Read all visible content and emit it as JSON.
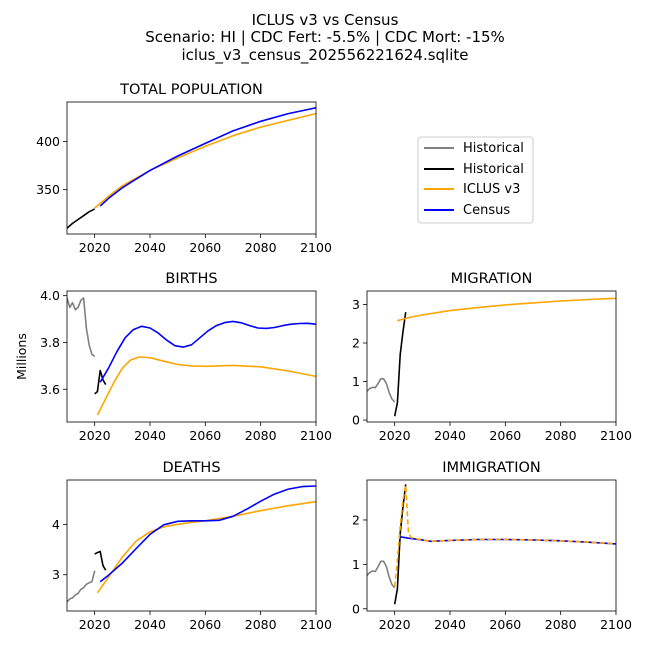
{
  "figure": {
    "title_lines": [
      "ICLUS v3 vs Census",
      "Scenario: HI | CDC Fert: -5.5% | CDC Mort: -15%",
      "iclus_v3_census_202556221624.sqlite"
    ]
  },
  "colors": {
    "historical_gray": "#808080",
    "historical_black": "#000000",
    "iclus": "#ffa500",
    "census": "#0000ff"
  },
  "legend": {
    "placement": "right of TOTAL POPULATION",
    "entries": [
      {
        "label": "Historical",
        "color": "#808080"
      },
      {
        "label": "Historical",
        "color": "#000000"
      },
      {
        "label": "ICLUS v3",
        "color": "#ffa500"
      },
      {
        "label": "Census",
        "color": "#0000ff"
      }
    ]
  },
  "chart_data": [
    {
      "id": "total",
      "type": "line",
      "title": "TOTAL POPULATION",
      "xlabel": "",
      "ylabel": "",
      "xlim": [
        2010,
        2100
      ],
      "ylim": [
        304,
        441
      ],
      "xticks": [
        2020,
        2040,
        2060,
        2080,
        2100
      ],
      "yticks": [
        350,
        400
      ],
      "series": [
        {
          "name": "Historical",
          "color": "#000000",
          "dashed": false,
          "x": [
            2010,
            2012,
            2014,
            2016,
            2018,
            2020
          ],
          "y": [
            310,
            315,
            319,
            323,
            327,
            330
          ]
        },
        {
          "name": "ICLUS v3",
          "color": "#ffa500",
          "dashed": false,
          "x": [
            2020,
            2025,
            2030,
            2040,
            2050,
            2060,
            2070,
            2080,
            2090,
            2100
          ],
          "y": [
            331,
            343,
            354,
            370,
            383,
            395,
            406,
            415,
            422,
            429
          ]
        },
        {
          "name": "Census",
          "color": "#0000ff",
          "dashed": false,
          "x": [
            2022,
            2025,
            2030,
            2040,
            2050,
            2060,
            2070,
            2080,
            2090,
            2100
          ],
          "y": [
            333,
            341,
            352,
            370,
            385,
            398,
            411,
            421,
            429,
            435
          ]
        }
      ]
    },
    {
      "id": "births",
      "type": "line",
      "title": "BIRTHS",
      "xlabel": "",
      "ylabel": "Millions",
      "xlim": [
        2010,
        2100
      ],
      "ylim": [
        3.46,
        4.02
      ],
      "xticks": [
        2020,
        2040,
        2060,
        2080,
        2100
      ],
      "yticks": [
        3.6,
        3.8,
        4.0
      ],
      "tick_labels": [
        "3.6",
        "3.8",
        "4.0"
      ],
      "series": [
        {
          "name": "Historical",
          "color": "#808080",
          "dashed": false,
          "x": [
            2010,
            2011,
            2012,
            2013,
            2014,
            2015,
            2016,
            2017,
            2018,
            2019,
            2020
          ],
          "y": [
            3.99,
            3.95,
            3.97,
            3.94,
            3.95,
            3.98,
            3.99,
            3.86,
            3.79,
            3.75,
            3.74
          ]
        },
        {
          "name": "Historical",
          "color": "#000000",
          "dashed": false,
          "x": [
            2020,
            2021,
            2022,
            2023,
            2024
          ],
          "y": [
            3.58,
            3.59,
            3.68,
            3.64,
            3.62
          ]
        },
        {
          "name": "ICLUS v3",
          "color": "#ffa500",
          "dashed": false,
          "x": [
            2021,
            2024,
            2027,
            2030,
            2033,
            2036,
            2040,
            2045,
            2050,
            2055,
            2060,
            2070,
            2080,
            2090,
            2100
          ],
          "y": [
            3.49,
            3.56,
            3.63,
            3.69,
            3.725,
            3.738,
            3.735,
            3.72,
            3.706,
            3.7,
            3.698,
            3.702,
            3.696,
            3.678,
            3.655
          ]
        },
        {
          "name": "Census",
          "color": "#0000ff",
          "dashed": false,
          "x": [
            2022,
            2025,
            2028,
            2031,
            2034,
            2037,
            2040,
            2043,
            2046,
            2049,
            2052,
            2055,
            2058,
            2061,
            2064,
            2067,
            2070,
            2073,
            2076,
            2079,
            2082,
            2085,
            2088,
            2091,
            2094,
            2097,
            2100
          ],
          "y": [
            3.63,
            3.69,
            3.76,
            3.82,
            3.855,
            3.869,
            3.862,
            3.84,
            3.81,
            3.786,
            3.78,
            3.79,
            3.82,
            3.85,
            3.872,
            3.885,
            3.89,
            3.884,
            3.872,
            3.862,
            3.86,
            3.864,
            3.872,
            3.878,
            3.881,
            3.882,
            3.878
          ]
        }
      ]
    },
    {
      "id": "migration",
      "type": "line",
      "title": "MIGRATION",
      "xlabel": "",
      "ylabel": "",
      "xlim": [
        2010,
        2100
      ],
      "ylim": [
        -0.05,
        3.35
      ],
      "xticks": [
        2020,
        2040,
        2060,
        2080,
        2100
      ],
      "yticks": [
        0,
        1,
        2,
        3
      ],
      "series": [
        {
          "name": "Historical",
          "color": "#808080",
          "dashed": false,
          "x": [
            2010,
            2011,
            2012,
            2013,
            2014,
            2015,
            2016,
            2017,
            2018,
            2019,
            2020
          ],
          "y": [
            0.75,
            0.82,
            0.85,
            0.84,
            0.95,
            1.07,
            1.07,
            0.95,
            0.72,
            0.55,
            0.47
          ]
        },
        {
          "name": "Historical",
          "color": "#000000",
          "dashed": false,
          "x": [
            2020,
            2021,
            2022,
            2023,
            2024
          ],
          "y": [
            0.1,
            0.45,
            1.7,
            2.3,
            2.8
          ]
        },
        {
          "name": "ICLUS v3",
          "color": "#ffa500",
          "dashed": false,
          "x": [
            2021,
            2025,
            2030,
            2040,
            2050,
            2060,
            2070,
            2080,
            2090,
            2100
          ],
          "y": [
            2.58,
            2.66,
            2.73,
            2.84,
            2.92,
            2.99,
            3.04,
            3.09,
            3.13,
            3.16
          ]
        }
      ]
    },
    {
      "id": "deaths",
      "type": "line",
      "title": "DEATHS",
      "xlabel": "",
      "ylabel": "",
      "xlim": [
        2010,
        2100
      ],
      "ylim": [
        2.28,
        4.88
      ],
      "xticks": [
        2020,
        2040,
        2060,
        2080,
        2100
      ],
      "yticks": [
        3,
        4
      ],
      "series": [
        {
          "name": "Historical",
          "color": "#808080",
          "dashed": false,
          "x": [
            2010,
            2011,
            2012,
            2013,
            2014,
            2015,
            2016,
            2017,
            2018,
            2019,
            2020
          ],
          "y": [
            2.46,
            2.52,
            2.54,
            2.6,
            2.63,
            2.71,
            2.74,
            2.81,
            2.84,
            2.86,
            3.08
          ]
        },
        {
          "name": "Historical",
          "color": "#000000",
          "dashed": false,
          "x": [
            2020,
            2021,
            2022,
            2023,
            2024
          ],
          "y": [
            3.41,
            3.44,
            3.46,
            3.18,
            3.09
          ]
        },
        {
          "name": "ICLUS v3",
          "color": "#ffa500",
          "dashed": false,
          "x": [
            2021,
            2025,
            2030,
            2035,
            2040,
            2045,
            2050,
            2055,
            2060,
            2070,
            2080,
            2090,
            2100
          ],
          "y": [
            2.64,
            2.95,
            3.35,
            3.67,
            3.85,
            3.95,
            4.0,
            4.04,
            4.07,
            4.16,
            4.27,
            4.37,
            4.45
          ]
        },
        {
          "name": "Census",
          "color": "#0000ff",
          "dashed": false,
          "x": [
            2022,
            2025,
            2030,
            2035,
            2040,
            2045,
            2050,
            2055,
            2060,
            2065,
            2070,
            2075,
            2080,
            2085,
            2090,
            2095,
            2100
          ],
          "y": [
            2.86,
            2.99,
            3.23,
            3.52,
            3.8,
            3.99,
            4.06,
            4.07,
            4.07,
            4.08,
            4.16,
            4.3,
            4.46,
            4.6,
            4.7,
            4.75,
            4.76
          ]
        }
      ]
    },
    {
      "id": "immigration",
      "type": "line",
      "title": "IMMIGRATION",
      "xlabel": "",
      "ylabel": "",
      "xlim": [
        2010,
        2100
      ],
      "ylim": [
        -0.05,
        2.9
      ],
      "xticks": [
        2020,
        2040,
        2060,
        2080,
        2100
      ],
      "yticks": [
        0,
        1,
        2
      ],
      "series": [
        {
          "name": "Historical",
          "color": "#808080",
          "dashed": false,
          "x": [
            2010,
            2011,
            2012,
            2013,
            2014,
            2015,
            2016,
            2017,
            2018,
            2019,
            2020
          ],
          "y": [
            0.75,
            0.82,
            0.85,
            0.84,
            0.95,
            1.07,
            1.07,
            0.95,
            0.72,
            0.55,
            0.47
          ]
        },
        {
          "name": "Historical",
          "color": "#000000",
          "dashed": false,
          "x": [
            2020,
            2021,
            2022,
            2023,
            2024
          ],
          "y": [
            0.1,
            0.45,
            1.7,
            2.3,
            2.8
          ]
        },
        {
          "name": "Census",
          "color": "#0000ff",
          "dashed": false,
          "x": [
            2022,
            2025,
            2030,
            2033,
            2040,
            2050,
            2060,
            2070,
            2080,
            2090,
            2100
          ],
          "y": [
            1.62,
            1.59,
            1.55,
            1.52,
            1.54,
            1.56,
            1.56,
            1.55,
            1.53,
            1.5,
            1.46
          ]
        },
        {
          "name": "ICLUS v3",
          "color": "#ffa500",
          "dashed": true,
          "x": [
            2020,
            2021,
            2022,
            2023,
            2024,
            2025,
            2026,
            2030,
            2033,
            2040,
            2050,
            2060,
            2070,
            2080,
            2090,
            2100
          ],
          "y": [
            0.5,
            1.1,
            1.85,
            2.45,
            2.78,
            1.7,
            1.6,
            1.55,
            1.52,
            1.54,
            1.56,
            1.56,
            1.55,
            1.53,
            1.5,
            1.46
          ]
        }
      ]
    }
  ]
}
